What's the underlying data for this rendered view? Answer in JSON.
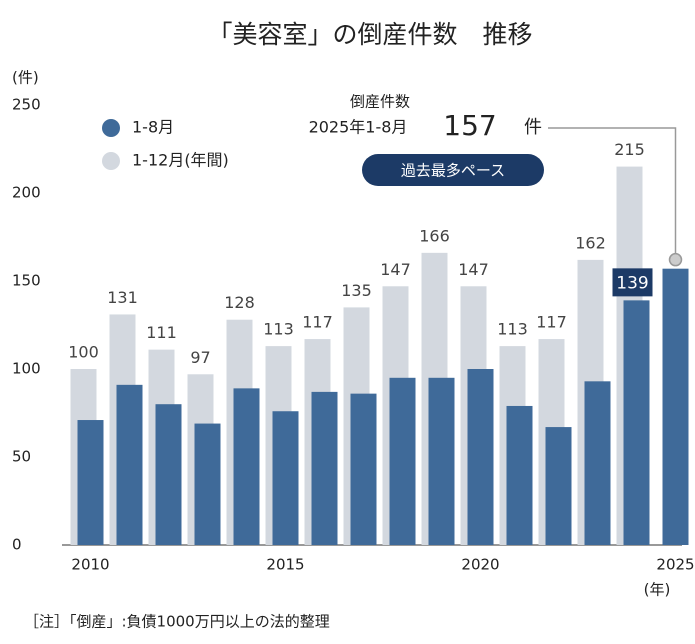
{
  "chart_data": {
    "type": "bar",
    "title": "「美容室」の倒産件数　推移",
    "y_unit": "(件)",
    "x_unit": "(年)",
    "categories": [
      "2010",
      null,
      null,
      null,
      null,
      "2015",
      null,
      null,
      null,
      null,
      "2020",
      null,
      null,
      null,
      null,
      "2025"
    ],
    "series": [
      {
        "name": "1-8月",
        "color": "#3f6a99",
        "values": [
          71,
          91,
          80,
          69,
          89,
          76,
          87,
          86,
          95,
          95,
          100,
          79,
          67,
          93,
          139,
          157
        ]
      },
      {
        "name": "1-12月(年間)",
        "color": "#d3d8df",
        "values": [
          100,
          131,
          111,
          97,
          128,
          113,
          117,
          135,
          147,
          166,
          147,
          113,
          117,
          162,
          215,
          null
        ]
      }
    ],
    "ylim": [
      0,
      250
    ],
    "yticks": [
      0,
      50,
      100,
      150,
      200,
      250
    ],
    "grid": false,
    "annotation": {
      "line1": "倒産件数",
      "line2": "2025年1-8月",
      "unit": "件",
      "badge": "過去最多ペース"
    },
    "note": "［注］「倒産」:負債1000万円以上の法的整理"
  }
}
